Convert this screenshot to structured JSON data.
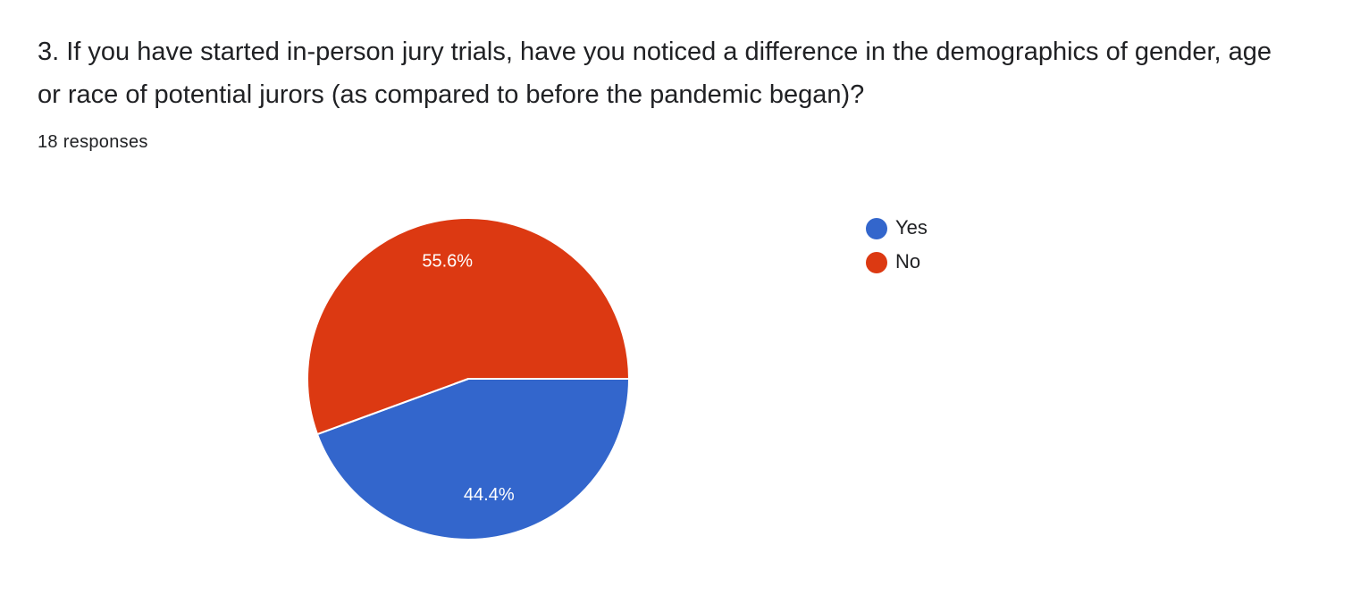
{
  "chart_data": {
    "type": "pie",
    "title": "3. If you have started in-person jury trials, have you noticed a difference in the demographics of gender, age or race of potential jurors (as compared to before the pandemic began)?",
    "subtitle": "18 responses",
    "categories": [
      "Yes",
      "No"
    ],
    "values": [
      44.4,
      55.6
    ],
    "value_labels": [
      "44.4%",
      "55.6%"
    ],
    "colors": [
      "#3366cc",
      "#dc3912"
    ],
    "legend": "right"
  }
}
